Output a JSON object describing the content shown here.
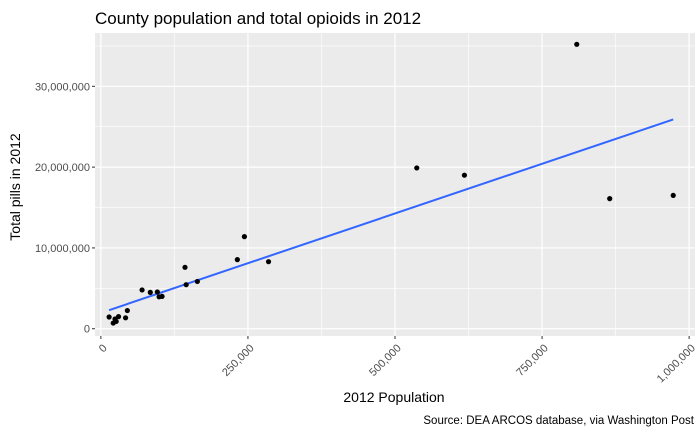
{
  "chart_data": {
    "type": "scatter",
    "title": "County population and total opioids in 2012",
    "xlabel": "2012 Population",
    "ylabel": "Total pills in 2012",
    "caption": "Source: DEA ARCOS database, via Washington Post",
    "xlim": [
      -10000,
      1010000
    ],
    "ylim": [
      -900000,
      36600000
    ],
    "x_ticks": [
      0,
      250000,
      500000,
      750000,
      1000000
    ],
    "x_tick_labels": [
      "0",
      "250,000",
      "500,000",
      "750,000",
      "1,000,000"
    ],
    "y_ticks": [
      0,
      10000000,
      20000000,
      30000000
    ],
    "y_tick_labels": [
      "0",
      "10,000,000",
      "20,000,000",
      "30,000,000"
    ],
    "grid": true,
    "background": "#ebebeb",
    "point_color": "#000000",
    "trend_color": "#3366ff",
    "points": [
      {
        "x": 14000,
        "y": 1450000
      },
      {
        "x": 21000,
        "y": 700000
      },
      {
        "x": 24000,
        "y": 1200000
      },
      {
        "x": 26000,
        "y": 900000
      },
      {
        "x": 30000,
        "y": 1500000
      },
      {
        "x": 42000,
        "y": 1350000
      },
      {
        "x": 45000,
        "y": 2250000
      },
      {
        "x": 70000,
        "y": 4800000
      },
      {
        "x": 84000,
        "y": 4500000
      },
      {
        "x": 96000,
        "y": 4550000
      },
      {
        "x": 99000,
        "y": 3950000
      },
      {
        "x": 104000,
        "y": 4000000
      },
      {
        "x": 143000,
        "y": 7600000
      },
      {
        "x": 145000,
        "y": 5450000
      },
      {
        "x": 164000,
        "y": 5850000
      },
      {
        "x": 232000,
        "y": 8550000
      },
      {
        "x": 244000,
        "y": 11400000
      },
      {
        "x": 285000,
        "y": 8300000
      },
      {
        "x": 537000,
        "y": 19900000
      },
      {
        "x": 618000,
        "y": 19000000
      },
      {
        "x": 809000,
        "y": 35200000
      },
      {
        "x": 865000,
        "y": 16100000
      },
      {
        "x": 973000,
        "y": 16500000
      }
    ],
    "trend_line": {
      "x": [
        14000,
        973000
      ],
      "y": [
        2300000,
        25900000
      ]
    }
  }
}
